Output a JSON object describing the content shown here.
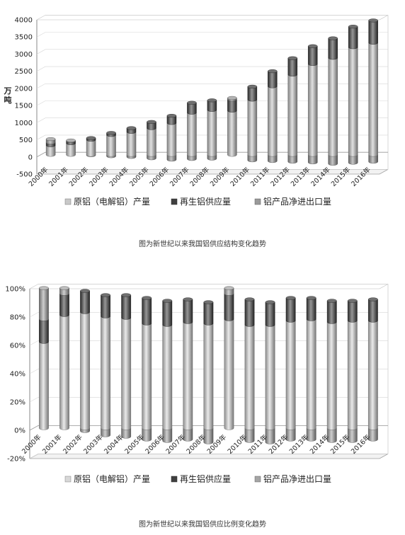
{
  "chart_data": [
    {
      "type": "bar",
      "stacked": true,
      "style": "3d-cylinder",
      "caption": "图为新世纪以来我国铝供应结构变化趋势",
      "ylabel": "万吨",
      "ylim": [
        -500,
        4000
      ],
      "yticks": [
        -500,
        0,
        500,
        1000,
        1500,
        2000,
        2500,
        3000,
        3500,
        4000
      ],
      "categories": [
        "2000年",
        "2001年",
        "2002年",
        "2003年",
        "2004年",
        "2005年",
        "2006年",
        "2007年",
        "2008年",
        "2009年",
        "2010年",
        "2011年",
        "2012年",
        "2013年",
        "2014年",
        "2015年",
        "2016年"
      ],
      "series": [
        {
          "name": "原铝（电解铝）产量",
          "color": "#c8c8c8",
          "values": [
            280,
            340,
            440,
            580,
            670,
            780,
            930,
            1230,
            1310,
            1290,
            1610,
            2000,
            2340,
            2650,
            2830,
            3140,
            3270
          ]
        },
        {
          "name": "再生铝供应量",
          "color": "#404040",
          "values": [
            80,
            70,
            50,
            60,
            110,
            180,
            210,
            290,
            280,
            330,
            380,
            440,
            480,
            520,
            570,
            600,
            650
          ]
        },
        {
          "name": "铝产品净进出口量",
          "color": "#9a9a9a",
          "values": [
            100,
            10,
            -10,
            -40,
            -60,
            -100,
            -140,
            -120,
            -110,
            40,
            -160,
            -180,
            -200,
            -220,
            -260,
            -230,
            -200
          ]
        }
      ],
      "legend": "bottom"
    },
    {
      "type": "bar",
      "stacked": true,
      "style": "3d-cylinder",
      "caption": "图为新世纪以来我国铝供应比例变化趋势",
      "ylabel": "",
      "ylim": [
        -20,
        100
      ],
      "yticks": [
        "-20%",
        "0%",
        "20%",
        "40%",
        "60%",
        "80%",
        "100%"
      ],
      "categories": [
        "2000年",
        "2001年",
        "2002年",
        "2003年",
        "2004年",
        "2005年",
        "2006年",
        "2007年",
        "2008年",
        "2009年",
        "2010年",
        "2011年",
        "2012年",
        "2013年",
        "2014年",
        "2015年",
        "2016年"
      ],
      "series": [
        {
          "name": "原铝（电解铝）产量",
          "color": "#d8d8d8",
          "values": [
            61,
            80,
            82,
            79,
            78,
            74,
            73,
            75,
            74,
            77,
            73,
            73,
            76,
            77,
            75,
            76,
            76
          ]
        },
        {
          "name": "再生铝供应量",
          "color": "#404040",
          "values": [
            16,
            15,
            15,
            15,
            16,
            18,
            17,
            16,
            15,
            18,
            18,
            16,
            16,
            15,
            15,
            14,
            15
          ]
        },
        {
          "name": "铝产品净进出口量",
          "color": "#a5a5a5",
          "values": [
            22,
            4,
            -2,
            -5,
            -6,
            -8,
            -9,
            -8,
            -10,
            4,
            -9,
            -10,
            -8,
            -8,
            -9,
            -9,
            -8
          ]
        }
      ],
      "legend": "bottom"
    }
  ]
}
